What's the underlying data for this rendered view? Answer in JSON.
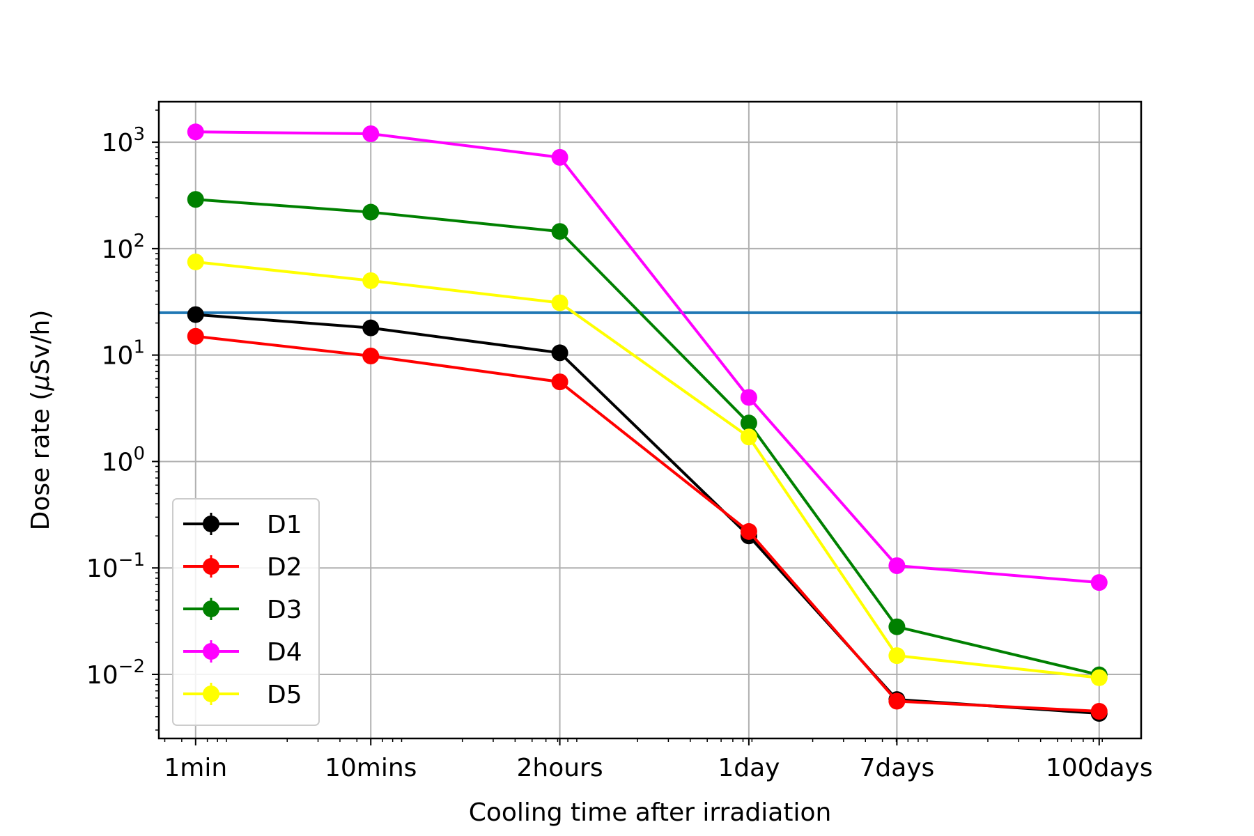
{
  "chart_data": {
    "type": "line",
    "title": "",
    "xlabel": "Cooling time after irradiation",
    "ylabel_prefix": "Dose rate (",
    "ylabel_mu": "μ",
    "ylabel_suffix": "Sv/h)",
    "y_scale": "log",
    "x_scale": "log",
    "x_seconds": [
      60,
      600,
      7200,
      86400,
      604800,
      8640000
    ],
    "categories": [
      "1min",
      "10mins",
      "2hours",
      "1day",
      "7days",
      "100days"
    ],
    "ylim": [
      0.0025,
      2400
    ],
    "xlim": [
      37,
      15000000
    ],
    "y_ticks": [
      {
        "base": "10",
        "exp": "3",
        "value": 1000
      },
      {
        "base": "10",
        "exp": "2",
        "value": 100
      },
      {
        "base": "10",
        "exp": "1",
        "value": 10
      },
      {
        "base": "10",
        "exp": "0",
        "value": 1
      },
      {
        "base": "10",
        "exp": "−1",
        "value": 0.1
      },
      {
        "base": "10",
        "exp": "−2",
        "value": 0.01
      }
    ],
    "reference_line": {
      "value": 25,
      "color": "#1f77b4"
    },
    "grid": true,
    "legend_position": "lower-left",
    "series": [
      {
        "name": "D1",
        "color": "#000000",
        "values": [
          24,
          18,
          10.5,
          0.2,
          0.0058,
          0.0043
        ]
      },
      {
        "name": "D2",
        "color": "#ff0000",
        "values": [
          15,
          9.8,
          5.6,
          0.22,
          0.0056,
          0.0045
        ]
      },
      {
        "name": "D3",
        "color": "#008000",
        "values": [
          290,
          220,
          145,
          2.3,
          0.028,
          0.0099
        ]
      },
      {
        "name": "D4",
        "color": "#ff00ff",
        "values": [
          1250,
          1200,
          720,
          4.0,
          0.105,
          0.073
        ]
      },
      {
        "name": "D5",
        "color": "#ffff00",
        "values": [
          75,
          50,
          31,
          1.7,
          0.015,
          0.0093
        ]
      }
    ]
  }
}
